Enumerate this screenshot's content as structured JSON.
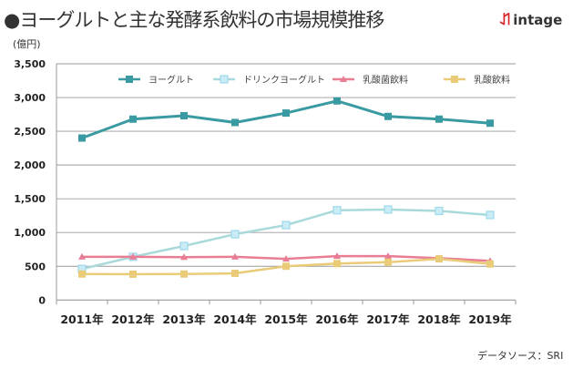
{
  "title": "●ヨーグルトと主な発酵系飲料の市場規模推移",
  "logo": "intage",
  "source": "データソース：SRI",
  "chart_data": {
    "type": "line",
    "title": "ヨーグルトと主な発酵系飲料の市場規模推移",
    "ylabel": "(億円)",
    "ylim": [
      0,
      3500
    ],
    "yticks": [
      "0",
      "500",
      "1,000",
      "1,500",
      "2,000",
      "2,500",
      "3,000",
      "3,500"
    ],
    "ytick_values": [
      0,
      500,
      1000,
      1500,
      2000,
      2500,
      3000,
      3500
    ],
    "categories": [
      "2011年",
      "2012年",
      "2013年",
      "2014年",
      "2015年",
      "2016年",
      "2017年",
      "2018年",
      "2019年"
    ],
    "grid": true,
    "legend": "top",
    "series": [
      {
        "name": "ヨーグルト",
        "color": "#3a9aa1",
        "marker": "square",
        "values": [
          2400,
          2680,
          2730,
          2630,
          2770,
          2950,
          2720,
          2680,
          2620
        ]
      },
      {
        "name": "ドリンクヨーグルト",
        "color": "#a9d9d9",
        "marker_color": "#9fd9ec",
        "marker": "square-open",
        "values": [
          460,
          640,
          800,
          975,
          1110,
          1330,
          1340,
          1320,
          1260
        ]
      },
      {
        "name": "乳酸菌飲料",
        "color": "#e87d94",
        "marker": "triangle",
        "values": [
          640,
          640,
          635,
          640,
          610,
          650,
          650,
          620,
          580
        ]
      },
      {
        "name": "乳酸飲料",
        "color": "#e9cb78",
        "marker": "square",
        "values": [
          385,
          383,
          385,
          395,
          500,
          540,
          560,
          610,
          535
        ]
      }
    ]
  }
}
